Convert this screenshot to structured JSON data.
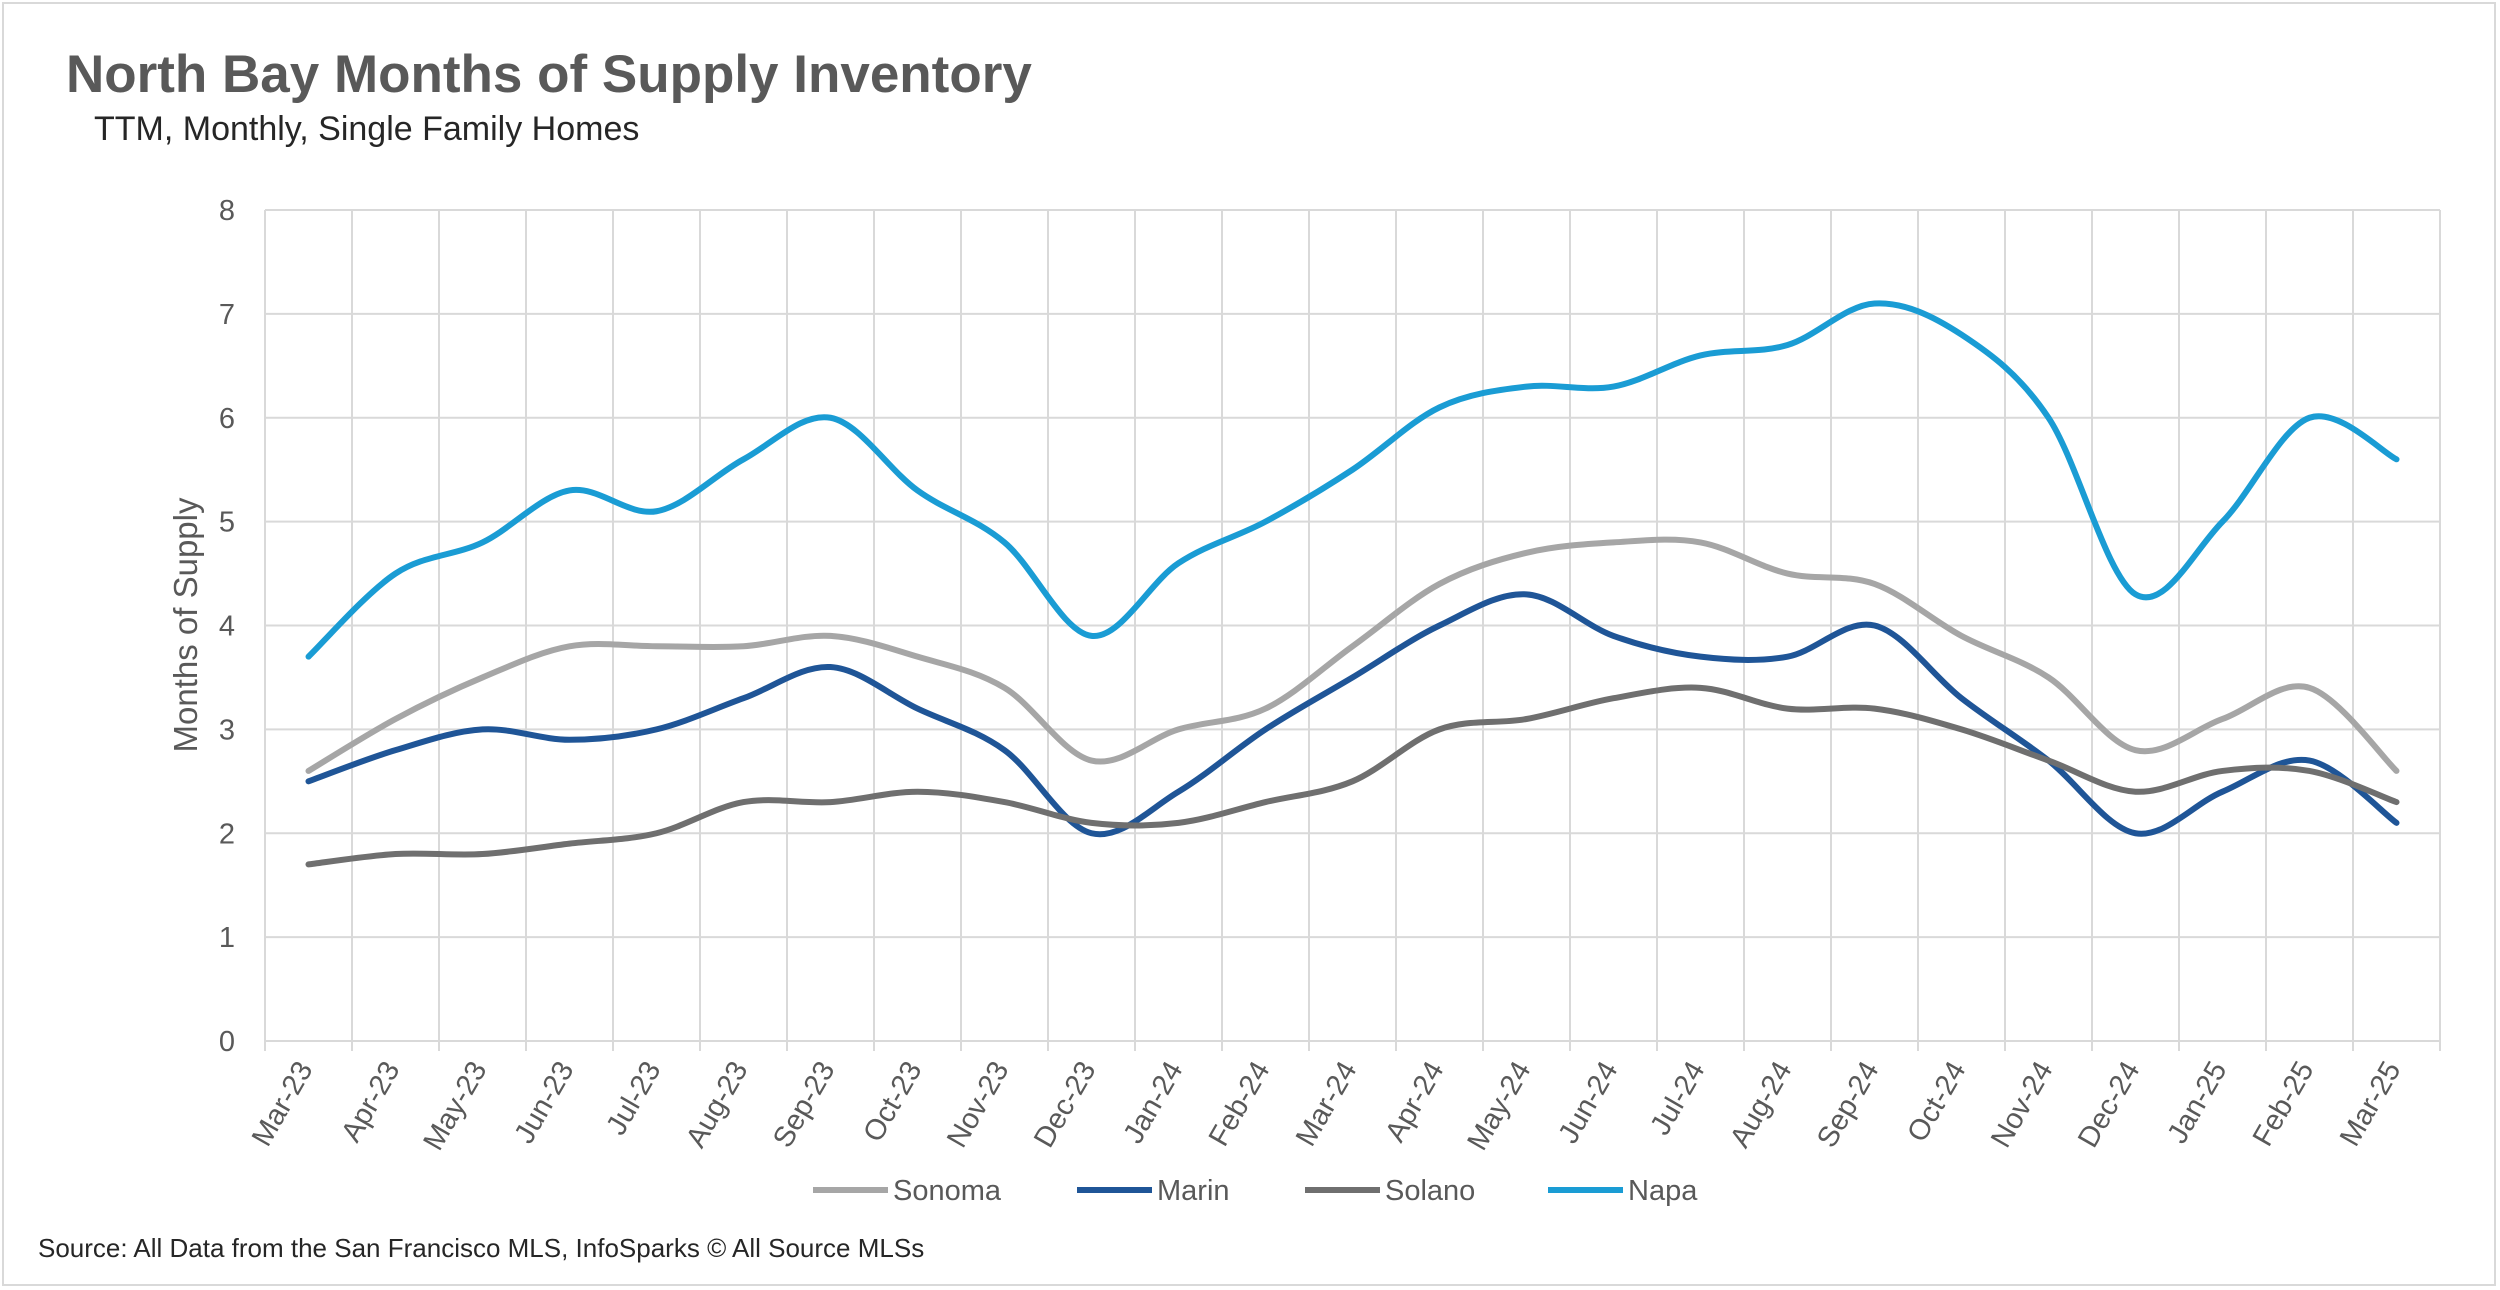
{
  "header": {
    "title": "North Bay Months of Supply Inventory",
    "subtitle": "TTM, Monthly, Single Family Homes"
  },
  "footer": {
    "source": "Source: All Data from the San Francisco MLS, InfoSparks © All Source MLSs"
  },
  "chart_data": {
    "type": "line",
    "title": "North Bay Months of Supply Inventory",
    "subtitle": "TTM, Monthly, Single Family Homes",
    "xlabel": "",
    "ylabel": "Months of Supply",
    "ylim": [
      0,
      8
    ],
    "yticks": [
      0,
      1,
      2,
      3,
      4,
      5,
      6,
      7,
      8
    ],
    "grid": true,
    "legend_position": "bottom",
    "categories": [
      "Mar-23",
      "Apr-23",
      "May-23",
      "Jun-23",
      "Jul-23",
      "Aug-23",
      "Sep-23",
      "Oct-23",
      "Nov-23",
      "Dec-23",
      "Jan-24",
      "Feb-24",
      "Mar-24",
      "Apr-24",
      "May-24",
      "Jun-24",
      "Jul-24",
      "Aug-24",
      "Sep-24",
      "Oct-24",
      "Nov-24",
      "Dec-24",
      "Jan-25",
      "Feb-25",
      "Mar-25"
    ],
    "series": [
      {
        "name": "Sonoma",
        "color": "#a6a6a6",
        "values": [
          2.6,
          3.1,
          3.5,
          3.8,
          3.8,
          3.8,
          3.9,
          3.7,
          3.4,
          2.7,
          3.0,
          3.2,
          3.8,
          4.4,
          4.7,
          4.8,
          4.8,
          4.5,
          4.4,
          3.9,
          3.5,
          2.8,
          3.1,
          3.4,
          2.6
        ]
      },
      {
        "name": "Marin",
        "color": "#1f5597",
        "values": [
          2.5,
          2.8,
          3.0,
          2.9,
          3.0,
          3.3,
          3.6,
          3.2,
          2.8,
          2.0,
          2.4,
          3.0,
          3.5,
          4.0,
          4.3,
          3.9,
          3.7,
          3.7,
          4.0,
          3.3,
          2.7,
          2.0,
          2.4,
          2.7,
          2.1
        ]
      },
      {
        "name": "Solano",
        "color": "#6f6f6f",
        "values": [
          1.7,
          1.8,
          1.8,
          1.9,
          2.0,
          2.3,
          2.3,
          2.4,
          2.3,
          2.1,
          2.1,
          2.3,
          2.5,
          3.0,
          3.1,
          3.3,
          3.4,
          3.2,
          3.2,
          3.0,
          2.7,
          2.4,
          2.6,
          2.6,
          2.3
        ]
      },
      {
        "name": "Napa",
        "color": "#1a9cd4",
        "values": [
          3.7,
          4.5,
          4.8,
          5.3,
          5.1,
          5.6,
          6.0,
          5.3,
          4.8,
          3.9,
          4.6,
          5.0,
          5.5,
          6.1,
          6.3,
          6.3,
          6.6,
          6.7,
          7.1,
          6.8,
          6.0,
          4.3,
          5.0,
          6.0,
          5.6
        ]
      }
    ]
  }
}
